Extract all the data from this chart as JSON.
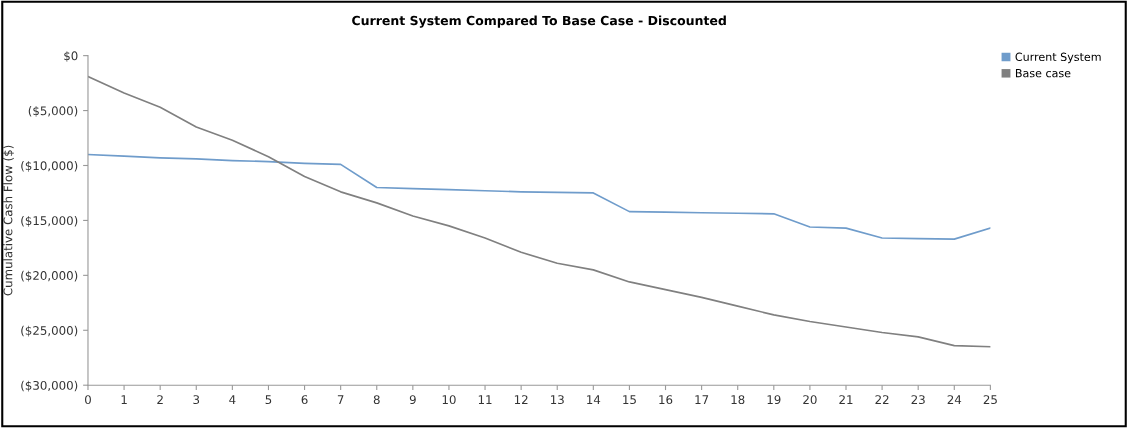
{
  "chart_data": {
    "type": "line",
    "title": "Current System Compared To Base Case - Discounted",
    "ylabel": "Cumulative Cash Flow ($)",
    "x": [
      0,
      1,
      2,
      3,
      4,
      5,
      6,
      7,
      8,
      9,
      10,
      11,
      12,
      13,
      14,
      15,
      16,
      17,
      18,
      19,
      20,
      21,
      22,
      23,
      24,
      25
    ],
    "series": [
      {
        "name": "Current System",
        "color": "#6f9ccb",
        "values": [
          -9000,
          -9150,
          -9300,
          -9400,
          -9550,
          -9650,
          -9800,
          -9900,
          -12000,
          -12100,
          -12200,
          -12300,
          -12400,
          -12450,
          -12500,
          -14200,
          -14250,
          -14300,
          -14350,
          -14400,
          -15600,
          -15700,
          -16600,
          -16650,
          -16700,
          -15700
        ]
      },
      {
        "name": "Base case",
        "color": "#808080",
        "values": [
          -1900,
          -3400,
          -4700,
          -6500,
          -7700,
          -9200,
          -11000,
          -12400,
          -13400,
          -14600,
          -15500,
          -16600,
          -17900,
          -18900,
          -19500,
          -20600,
          -21300,
          -22000,
          -22800,
          -23600,
          -24200,
          -24700,
          -25200,
          -25600,
          -26400,
          -26500
        ]
      }
    ],
    "xlim": [
      0,
      25
    ],
    "xticks": [
      0,
      1,
      2,
      3,
      4,
      5,
      6,
      7,
      8,
      9,
      10,
      11,
      12,
      13,
      14,
      15,
      16,
      17,
      18,
      19,
      20,
      21,
      22,
      23,
      24,
      25
    ],
    "ylim": [
      -30000,
      0
    ],
    "yticks": [
      {
        "value": 0,
        "label": "$0"
      },
      {
        "value": -5000,
        "label": "($5,000)"
      },
      {
        "value": -10000,
        "label": "($10,000)"
      },
      {
        "value": -15000,
        "label": "($15,000)"
      },
      {
        "value": -20000,
        "label": "($20,000)"
      },
      {
        "value": -25000,
        "label": "($25,000)"
      },
      {
        "value": -30000,
        "label": "($30,000)"
      }
    ],
    "grid": false,
    "legend": "top right",
    "marker": "none",
    "line_style": "solid"
  }
}
